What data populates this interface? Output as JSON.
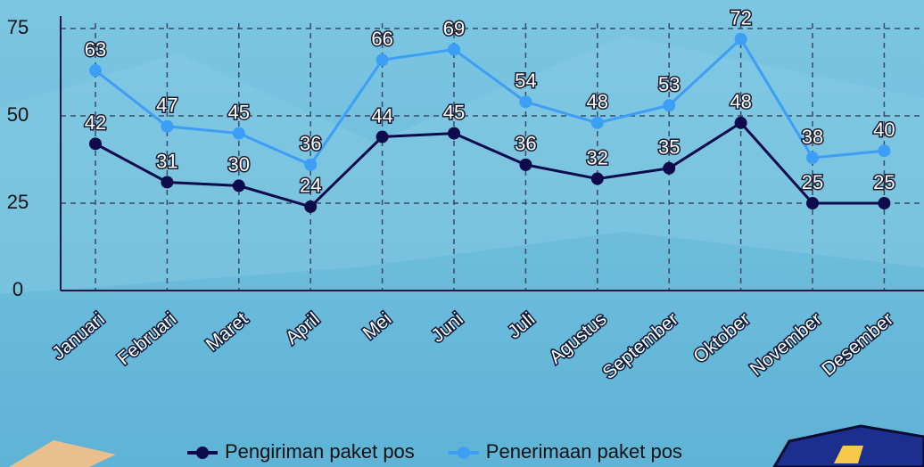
{
  "chart_data": {
    "type": "line",
    "categories": [
      "Januari",
      "Februari",
      "Maret",
      "April",
      "Mei",
      "Juni",
      "Juli",
      "Agustus",
      "September",
      "Oktober",
      "November",
      "Desember"
    ],
    "series": [
      {
        "name": "Pengiriman paket pos",
        "color": "#0e0b4d",
        "values": [
          42,
          31,
          30,
          24,
          44,
          45,
          36,
          32,
          35,
          48,
          25,
          25
        ]
      },
      {
        "name": "Penerimaan paket pos",
        "color": "#3d9ef5",
        "values": [
          63,
          47,
          45,
          36,
          66,
          69,
          54,
          48,
          53,
          72,
          38,
          40
        ]
      }
    ],
    "ylim": [
      0,
      75
    ],
    "yticks": [
      0,
      25,
      50,
      75
    ],
    "grid": true,
    "legend": "bottom"
  }
}
